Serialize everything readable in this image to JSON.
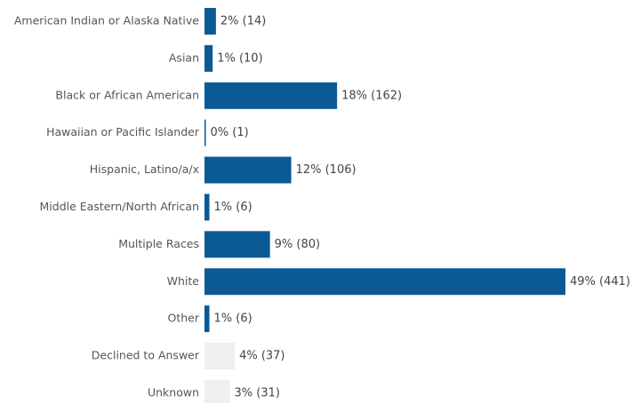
{
  "chart_data": {
    "type": "barh",
    "categories": [
      "American Indian or Alaska Native",
      "Asian",
      "Black or African American",
      "Hawaiian or Pacific Islander",
      "Hispanic, Latino/a/x",
      "Middle Eastern/North African",
      "Multiple Races",
      "White",
      "Other",
      "Declined to Answer",
      "Unknown"
    ],
    "values": [
      14,
      10,
      162,
      1,
      106,
      6,
      80,
      441,
      6,
      37,
      31
    ],
    "value_labels": [
      "2% (14)",
      "1% (10)",
      "18% (162)",
      "0% (1)",
      "12% (106)",
      "1% (6)",
      "9% (80)",
      "49% (441)",
      "1% (6)",
      "4% (37)",
      "3% (31)"
    ],
    "colors": [
      "#0b5a96",
      "#0b5a96",
      "#0b5a96",
      "#0b5a96",
      "#0b5a96",
      "#0b5a96",
      "#0b5a96",
      "#0b5a96",
      "#0b5a96",
      "#efefef",
      "#efefef"
    ]
  }
}
